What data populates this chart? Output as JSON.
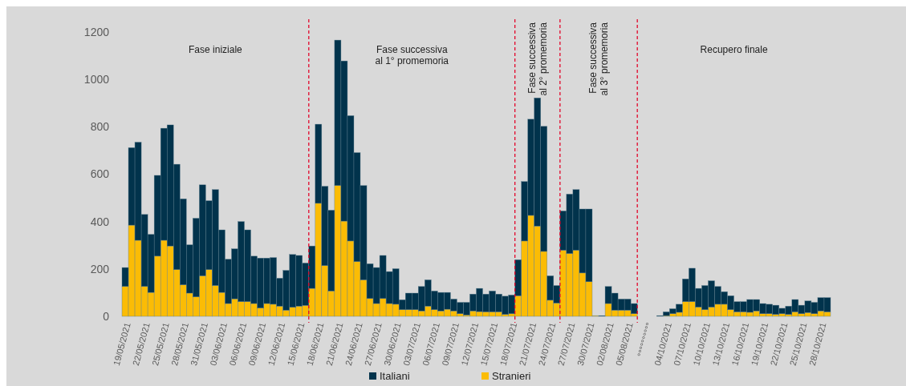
{
  "chart_data": {
    "type": "bar",
    "stacked": true,
    "categories": [
      "19/05/2021",
      null,
      null,
      "22/05/2021",
      null,
      null,
      "25/05/2021",
      null,
      null,
      "28/05/2021",
      null,
      null,
      "31/05/2021",
      null,
      null,
      "03/06/2021",
      null,
      null,
      "06/06/2021",
      null,
      null,
      "09/06/2021",
      null,
      null,
      "12/06/2021",
      null,
      null,
      "15/06/2021",
      null,
      null,
      "18/06/2021",
      null,
      null,
      "21/06/2021",
      null,
      null,
      "24/06/2021",
      null,
      null,
      "27/06/2021",
      null,
      null,
      "30/06/2021",
      null,
      null,
      "03/07/2021",
      null,
      null,
      "06/07/2021",
      null,
      null,
      "09/07/2021",
      null,
      null,
      "12/07/2021",
      null,
      null,
      "15/07/2021",
      null,
      null,
      "18/07/2021",
      null,
      null,
      "21/07/2021",
      null,
      null,
      "24/07/2021",
      null,
      null,
      "27/07/2021",
      null,
      null,
      "30/07/2021",
      null,
      null,
      "02/08/2021",
      null,
      null,
      "05/08/2021",
      null,
      null,
      "°°°°°°°°°°",
      null,
      null,
      "04/10/2021",
      null,
      null,
      "07/10/2021",
      null,
      null,
      "10/10/2021",
      null,
      null,
      "13/10/2021",
      null,
      null,
      "16/10/2021",
      null,
      null,
      "19/10/2021",
      null,
      null,
      "22/10/2021",
      null,
      null,
      "25/10/2021",
      null,
      null,
      "28/10/2021",
      null
    ],
    "series": [
      {
        "name": "Stranieri",
        "color": "#fbbc05",
        "values": [
          126,
          385,
          321,
          126,
          101,
          254,
          321,
          297,
          197,
          133,
          98,
          82,
          171,
          197,
          130,
          101,
          54,
          74,
          62,
          62,
          54,
          35,
          54,
          51,
          43,
          26,
          38,
          43,
          46,
          118,
          477,
          214,
          107,
          552,
          402,
          318,
          231,
          154,
          75,
          54,
          75,
          54,
          51,
          28,
          28,
          28,
          23,
          43,
          28,
          23,
          30,
          23,
          11,
          6,
          23,
          20,
          19,
          19,
          19,
          8,
          11,
          87,
          318,
          426,
          381,
          274,
          68,
          56,
          279,
          265,
          279,
          183,
          146,
          3,
          0,
          54,
          26,
          26,
          26,
          11,
          null,
          null,
          null,
          0,
          3,
          11,
          17,
          62,
          62,
          39,
          28,
          39,
          51,
          51,
          28,
          19,
          19,
          17,
          23,
          11,
          11,
          8,
          11,
          8,
          19,
          11,
          16,
          11,
          23,
          19
        ]
      },
      {
        "name": "Italiani",
        "color": "#01334c",
        "values": [
          80,
          327,
          414,
          304,
          245,
          341,
          473,
          511,
          445,
          363,
          204,
          332,
          384,
          291,
          405,
          264,
          187,
          211,
          338,
          303,
          200,
          211,
          192,
          197,
          118,
          168,
          223,
          214,
          179,
          179,
          334,
          335,
          341,
          614,
          676,
          529,
          460,
          398,
          147,
          152,
          182,
          135,
          150,
          42,
          70,
          70,
          103,
          111,
          79,
          78,
          71,
          50,
          48,
          53,
          71,
          98,
          75,
          88,
          75,
          77,
          79,
          152,
          251,
          406,
          541,
          528,
          103,
          74,
          166,
          251,
          256,
          270,
          307,
          0,
          3,
          72,
          72,
          47,
          47,
          43,
          null,
          null,
          null,
          3,
          16,
          21,
          34,
          96,
          141,
          79,
          102,
          111,
          75,
          53,
          59,
          43,
          43,
          54,
          48,
          43,
          40,
          39,
          23,
          35,
          52,
          36,
          49,
          48,
          56,
          60
        ]
      }
    ],
    "ylim": [
      0,
      1200
    ],
    "yticks": [
      0,
      200,
      400,
      600,
      800,
      1000,
      1200
    ],
    "annotations": [
      "Fase iniziale",
      "Fase successiva\nal 1° promemoria",
      "Fase successiva\nal 2° promemoria",
      "Fase successiva\nal 3° promemoria",
      "Recupero finale"
    ],
    "legend": "bottom",
    "grid": false
  }
}
